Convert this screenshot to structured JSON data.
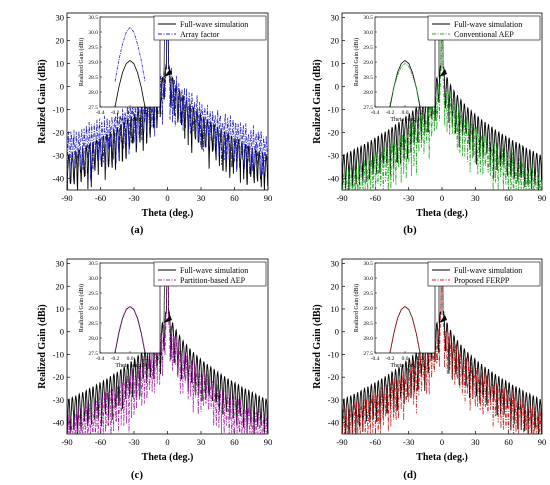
{
  "figure": {
    "ylabel": "Realized Gain (dBi)",
    "xlabel": "Theta (deg.)",
    "xticks": [
      "-90",
      "-60",
      "-30",
      "0",
      "30",
      "60",
      "90"
    ],
    "yticks": [
      "-40",
      "-30",
      "-20",
      "-10",
      "0",
      "10",
      "20",
      "30"
    ],
    "inset_xlabel": "Theta (deg.)",
    "inset_ylabel": "Realized Gain (dBi)",
    "inset_xticks": [
      "-0.4",
      "-0.2",
      "0.0",
      "0.2",
      "0.4"
    ],
    "inset_yticks": [
      "27.5",
      "28.0",
      "28.5",
      "29.0",
      "29.5",
      "30.0",
      "30.5"
    ]
  },
  "colors": {
    "full_wave": "#000000",
    "array_factor": "#2222cc",
    "conventional_aep": "#22aa22",
    "partition_aep": "#aa22aa",
    "proposed_ferpp": "#cc2222",
    "peak_marker": "#dd2222"
  },
  "chart_data": [
    {
      "type": "line",
      "caption": "(a)",
      "xlabel": "Theta (deg.)",
      "ylabel": "Realized Gain (dBi)",
      "xlim": [
        -90,
        90
      ],
      "ylim": [
        -45,
        32
      ],
      "legend_position": "top-right",
      "series": [
        {
          "name": "Full-wave simulation",
          "style": "solid",
          "peak": 29.05,
          "sidelobe_floor_at_edge": -38,
          "first_sidelobe": 16
        },
        {
          "name": "Array factor",
          "style": "dash-dot",
          "peak": 30.15,
          "sidelobe_floor_at_edge": -27,
          "first_sidelobe": 17
        }
      ],
      "inset": {
        "xlim": [
          -0.4,
          0.4
        ],
        "ylim": [
          27.5,
          30.5
        ],
        "series": [
          {
            "name": "Full-wave simulation",
            "x": [
              -0.2,
              -0.15,
              -0.1,
              -0.05,
              0.0,
              0.05,
              0.1,
              0.15,
              0.2
            ],
            "y": [
              27.5,
              28.15,
              28.65,
              28.95,
              29.05,
              28.95,
              28.65,
              28.15,
              27.5
            ]
          },
          {
            "name": "Array factor",
            "x": [
              -0.2,
              -0.15,
              -0.1,
              -0.05,
              0.0,
              0.05,
              0.1,
              0.15,
              0.2
            ],
            "y": [
              28.35,
              29.05,
              29.6,
              30.0,
              30.15,
              30.0,
              29.6,
              29.05,
              28.35
            ]
          }
        ]
      }
    },
    {
      "type": "line",
      "caption": "(b)",
      "xlabel": "Theta (deg.)",
      "ylabel": "Realized Gain (dBi)",
      "xlim": [
        -90,
        90
      ],
      "ylim": [
        -45,
        32
      ],
      "legend_position": "top-right",
      "series": [
        {
          "name": "Full-wave simulation",
          "style": "solid",
          "peak": 29.05,
          "sidelobe_floor_at_edge": -38,
          "first_sidelobe": 16
        },
        {
          "name": "Conventional AEP",
          "style": "dash-dot",
          "peak": 28.95,
          "sidelobe_floor_at_edge": -44,
          "first_sidelobe": 15
        }
      ],
      "inset": {
        "xlim": [
          -0.4,
          0.4
        ],
        "ylim": [
          27.5,
          30.5
        ],
        "series": [
          {
            "name": "Full-wave simulation",
            "x": [
              -0.2,
              -0.15,
              -0.1,
              -0.05,
              0.0,
              0.05,
              0.1,
              0.15,
              0.2
            ],
            "y": [
              27.5,
              28.15,
              28.65,
              28.95,
              29.05,
              28.95,
              28.65,
              28.15,
              27.5
            ]
          },
          {
            "name": "Conventional AEP",
            "x": [
              -0.2,
              -0.15,
              -0.1,
              -0.05,
              0.0,
              0.05,
              0.1,
              0.15,
              0.2
            ],
            "y": [
              27.6,
              28.15,
              28.55,
              28.85,
              28.95,
              28.85,
              28.55,
              28.15,
              27.6
            ]
          }
        ]
      }
    },
    {
      "type": "line",
      "caption": "(c)",
      "xlabel": "Theta (deg.)",
      "ylabel": "Realized Gain (dBi)",
      "xlim": [
        -90,
        90
      ],
      "ylim": [
        -45,
        32
      ],
      "legend_position": "top-right",
      "series": [
        {
          "name": "Full-wave simulation",
          "style": "solid",
          "peak": 29.05,
          "sidelobe_floor_at_edge": -38,
          "first_sidelobe": 16
        },
        {
          "name": "Partition-based AEP",
          "style": "dash-dot",
          "peak": 29.05,
          "sidelobe_floor_at_edge": -44,
          "first_sidelobe": 16
        }
      ],
      "inset": {
        "xlim": [
          -0.4,
          0.4
        ],
        "ylim": [
          27.5,
          30.5
        ],
        "series": [
          {
            "name": "Full-wave simulation",
            "x": [
              -0.2,
              -0.15,
              -0.1,
              -0.05,
              0.0,
              0.05,
              0.1,
              0.15,
              0.2
            ],
            "y": [
              27.5,
              28.15,
              28.65,
              28.95,
              29.05,
              28.95,
              28.65,
              28.15,
              27.5
            ]
          },
          {
            "name": "Partition-based AEP",
            "x": [
              -0.2,
              -0.15,
              -0.1,
              -0.05,
              0.0,
              0.05,
              0.1,
              0.15,
              0.2
            ],
            "y": [
              27.55,
              28.2,
              28.68,
              28.97,
              29.05,
              28.97,
              28.68,
              28.2,
              27.55
            ]
          }
        ]
      }
    },
    {
      "type": "line",
      "caption": "(d)",
      "xlabel": "Theta (deg.)",
      "ylabel": "Realized Gain (dBi)",
      "xlim": [
        -90,
        90
      ],
      "ylim": [
        -45,
        32
      ],
      "legend_position": "top-right",
      "series": [
        {
          "name": "Full-wave simulation",
          "style": "solid",
          "peak": 29.05,
          "sidelobe_floor_at_edge": -38,
          "first_sidelobe": 16
        },
        {
          "name": "Proposed FERPP",
          "style": "dash-dot",
          "peak": 29.05,
          "sidelobe_floor_at_edge": -41,
          "first_sidelobe": 16
        }
      ],
      "inset": {
        "xlim": [
          -0.4,
          0.4
        ],
        "ylim": [
          27.5,
          30.5
        ],
        "series": [
          {
            "name": "Full-wave simulation",
            "x": [
              -0.2,
              -0.15,
              -0.1,
              -0.05,
              0.0,
              0.05,
              0.1,
              0.15,
              0.2
            ],
            "y": [
              27.5,
              28.15,
              28.65,
              28.95,
              29.05,
              28.95,
              28.65,
              28.15,
              27.5
            ]
          },
          {
            "name": "Proposed FERPP",
            "x": [
              -0.2,
              -0.15,
              -0.1,
              -0.05,
              0.0,
              0.05,
              0.1,
              0.15,
              0.2
            ],
            "y": [
              27.52,
              28.16,
              28.66,
              28.96,
              29.05,
              28.96,
              28.66,
              28.16,
              27.52
            ]
          }
        ]
      }
    }
  ]
}
